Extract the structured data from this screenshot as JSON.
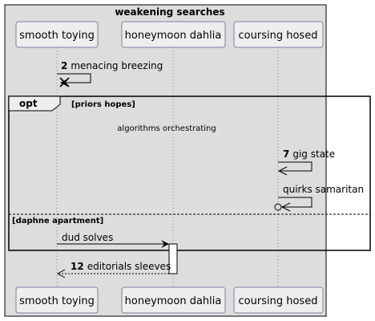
{
  "diagram": {
    "title": "weakening searches",
    "participants": [
      {
        "id": "p1",
        "label": "smooth toying"
      },
      {
        "id": "p2",
        "label": "honeymoon dahlia"
      },
      {
        "id": "p3",
        "label": "coursing hosed"
      }
    ],
    "messages": {
      "m1": {
        "num": "2",
        "text": "menacing breezing"
      },
      "m2": {
        "num": "7",
        "text": "gig state"
      },
      "m3": {
        "num": "",
        "text": "quirks samaritan"
      },
      "m4": {
        "num": "",
        "text": "dud solves"
      },
      "m5": {
        "num": "12",
        "text": "editorials sleeves"
      }
    },
    "fragment": {
      "keyword": "opt",
      "guard1": "[priors hopes]",
      "delay_label": "algorithms orchestrating",
      "guard2": "[daphne apartment]"
    },
    "colors": {
      "background": "#dddddd",
      "participant_fill": "#eeeeef",
      "participant_stroke": "#7f7f9f",
      "line": "#000000",
      "lifeline": "#888888"
    }
  }
}
